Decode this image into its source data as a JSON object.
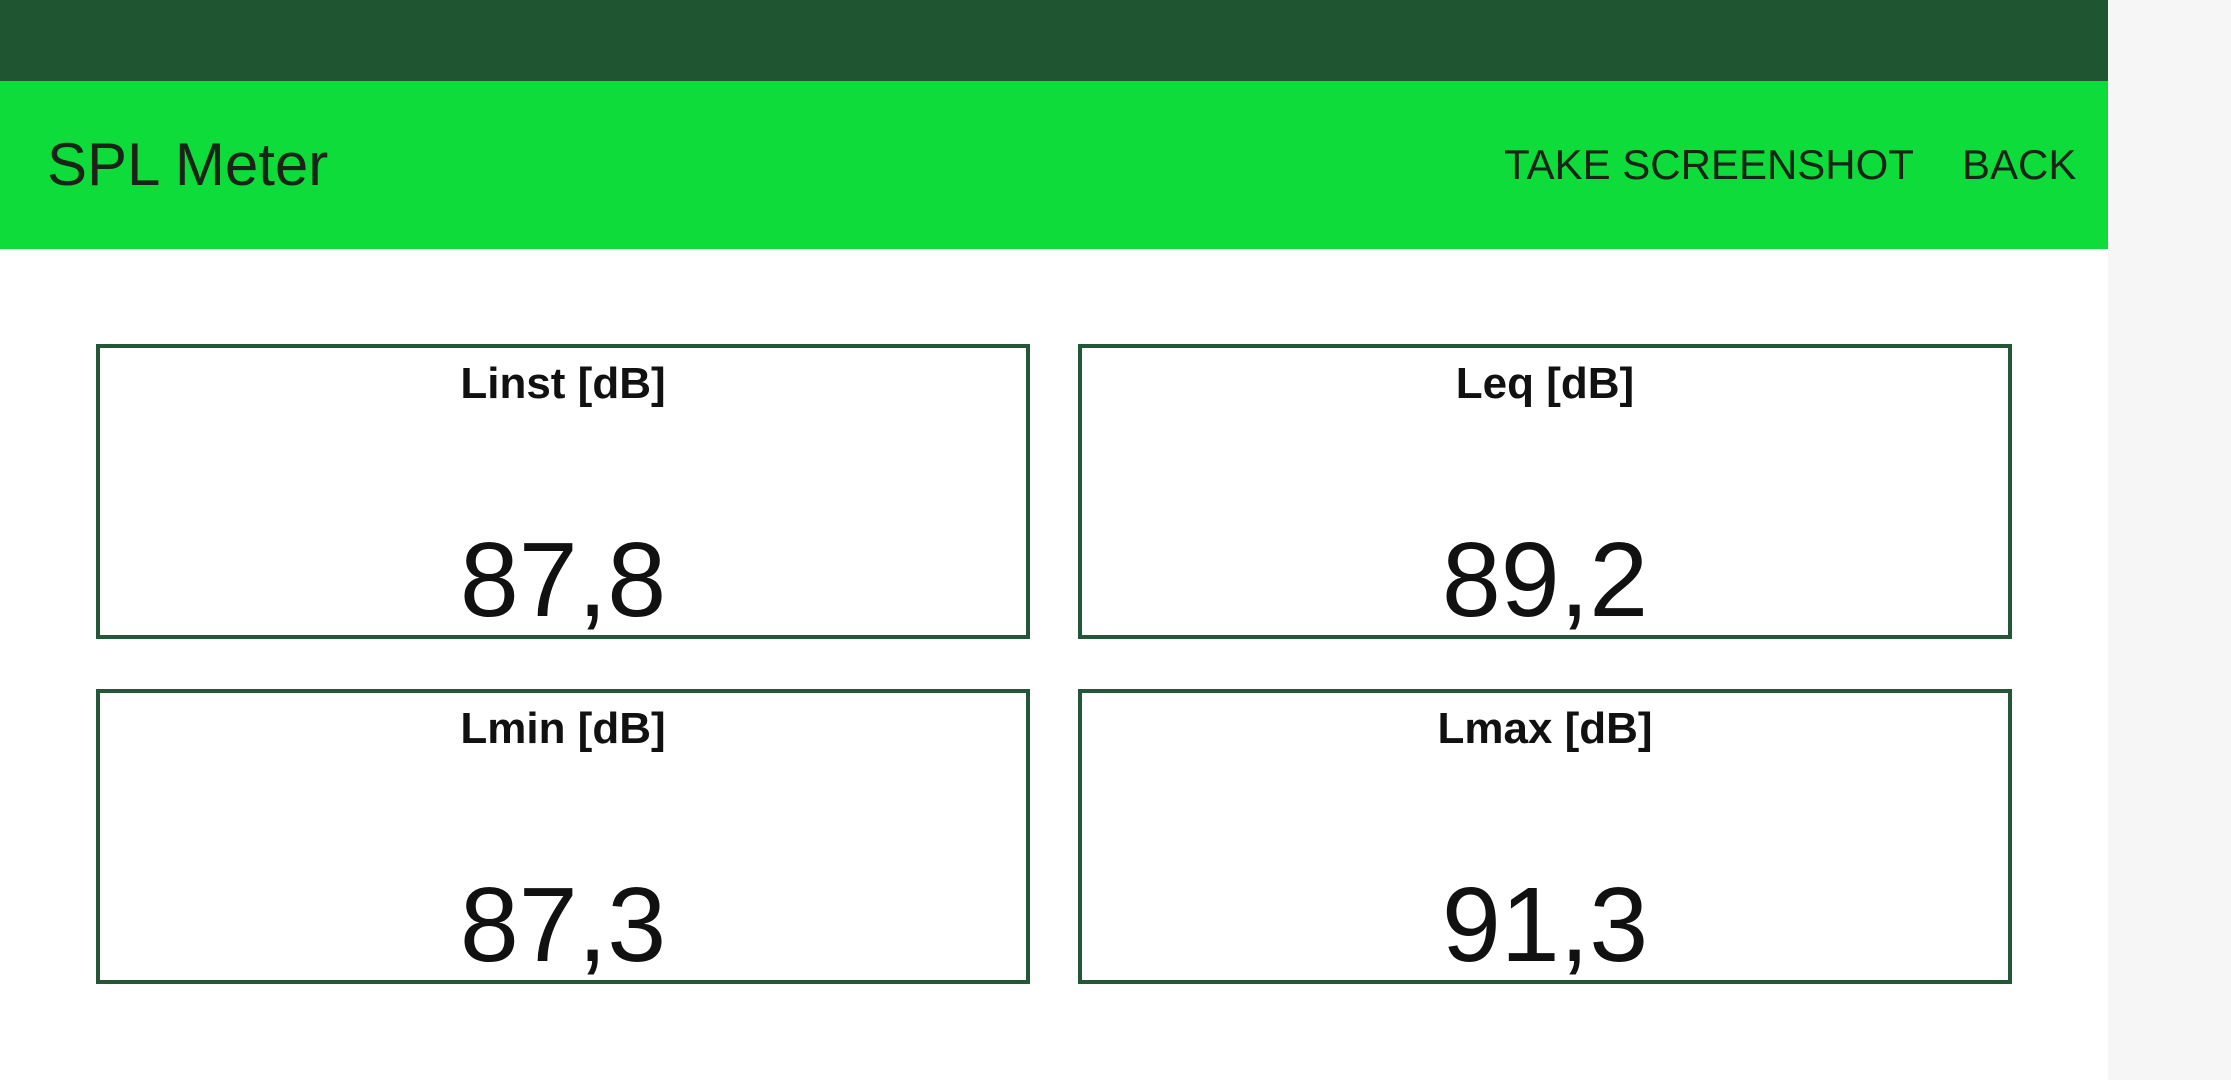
{
  "app_bar": {
    "title": "SPL Meter",
    "actions": {
      "take_screenshot": "TAKE SCREENSHOT",
      "back": "BACK"
    }
  },
  "readings": [
    {
      "label": "Linst [dB]",
      "value": "87,8"
    },
    {
      "label": "Leq [dB]",
      "value": "89,2"
    },
    {
      "label": "Lmin [dB]",
      "value": "87,3"
    },
    {
      "label": "Lmax [dB]",
      "value": "91,3"
    }
  ],
  "colors": {
    "status_bar": "#1f5631",
    "app_bar": "#0edc3a",
    "tile_border": "#235737"
  }
}
